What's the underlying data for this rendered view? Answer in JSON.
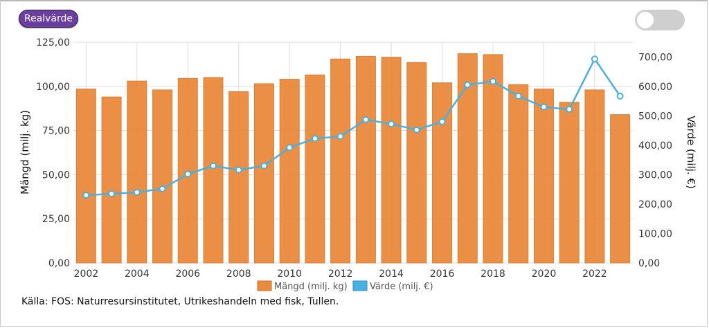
{
  "controls": {
    "real_value_button": "Realvärde"
  },
  "source_text": "Källa: FOS: Naturresursinstitutet, Utrikeshandeln med fisk, Tullen.",
  "chart_data": {
    "type": "bar",
    "categories": [
      "2002",
      "2003",
      "2004",
      "2005",
      "2006",
      "2007",
      "2008",
      "2009",
      "2010",
      "2011",
      "2012",
      "2013",
      "2014",
      "2015",
      "2016",
      "2017",
      "2018",
      "2019",
      "2020",
      "2021",
      "2022",
      "2023"
    ],
    "series": [
      {
        "name": "Mängd (milj. kg)",
        "type": "bar",
        "axis": "left",
        "color": "#e98a3c",
        "values": [
          98.5,
          94,
          103,
          98,
          104.5,
          105,
          97,
          101.5,
          104,
          106.5,
          115.5,
          117,
          116.5,
          113.5,
          102,
          118.5,
          118,
          101,
          98.5,
          91,
          98,
          84
        ]
      },
      {
        "name": "Värde (milj. €)",
        "type": "line",
        "axis": "right",
        "color": "#4ab0df",
        "values": [
          230,
          235,
          240,
          252,
          302,
          330,
          316,
          330,
          392,
          423,
          430,
          487,
          472,
          452,
          480,
          605,
          617,
          567,
          530,
          522,
          693,
          567
        ]
      }
    ],
    "x_ticks": [
      "2002",
      "2004",
      "2006",
      "2008",
      "2010",
      "2012",
      "2014",
      "2016",
      "2018",
      "2020",
      "2022"
    ],
    "y_left": {
      "label": "Mängd (milj. kg)",
      "range": [
        0,
        125
      ],
      "ticks": [
        "0,00",
        "25,00",
        "50,00",
        "75,00",
        "100,00",
        "125,00"
      ]
    },
    "y_right": {
      "label": "Värde (milj. €)",
      "range": [
        0,
        750
      ],
      "ticks": [
        "0,00",
        "100,00",
        "200,00",
        "300,00",
        "400,00",
        "500,00",
        "600,00",
        "700,00"
      ]
    },
    "legend_position": "bottom-center",
    "grid": true
  }
}
